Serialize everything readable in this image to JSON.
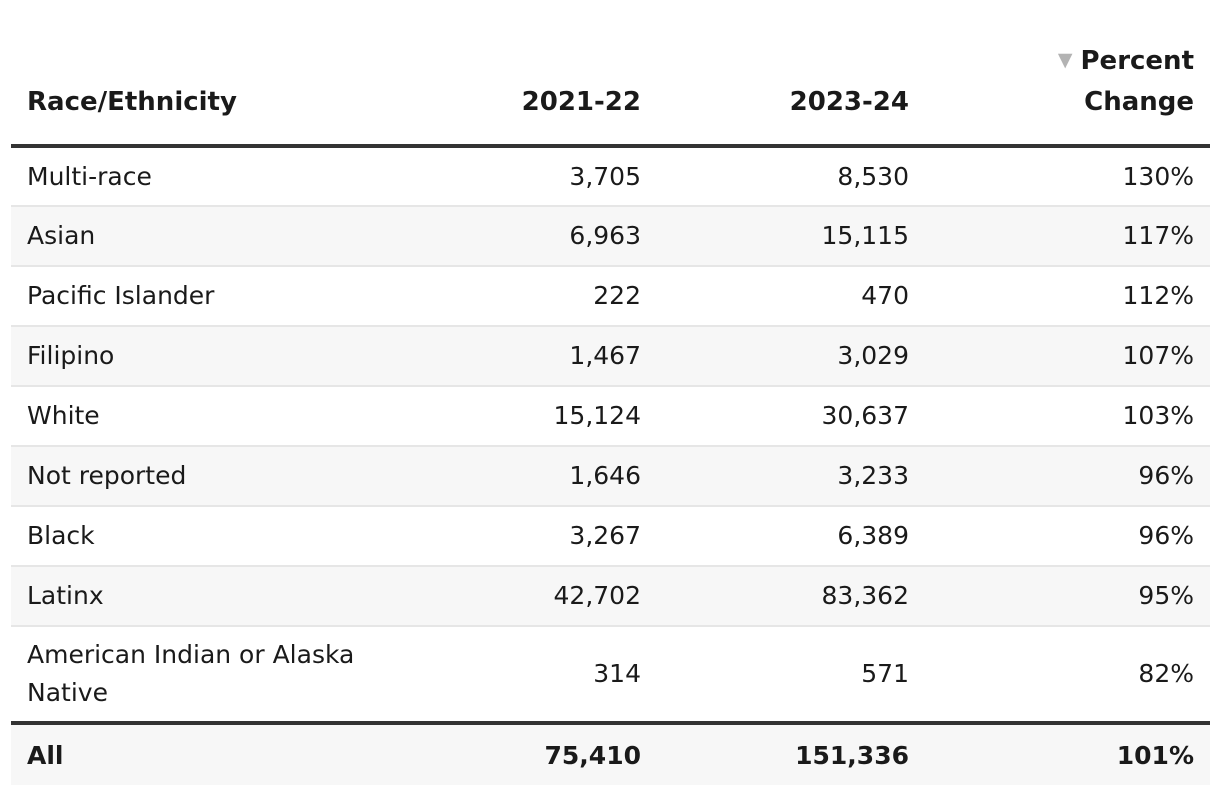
{
  "table": {
    "headers": {
      "race": "Race/Ethnicity",
      "y2021": "2021-22",
      "y2023": "2023-24",
      "change_line1": "Percent",
      "change_line2": "Change",
      "sort_icon": "sort-descending-icon",
      "sort_glyph": "▼"
    },
    "rows": [
      {
        "race": "Multi-race",
        "y2021": "3,705",
        "y2023": "8,530",
        "change": "130%"
      },
      {
        "race": "Asian",
        "y2021": "6,963",
        "y2023": "15,115",
        "change": "117%"
      },
      {
        "race": "Pacific Islander",
        "y2021": "222",
        "y2023": "470",
        "change": "112%"
      },
      {
        "race": "Filipino",
        "y2021": "1,467",
        "y2023": "3,029",
        "change": "107%"
      },
      {
        "race": "White",
        "y2021": "15,124",
        "y2023": "30,637",
        "change": "103%"
      },
      {
        "race": "Not reported",
        "y2021": "1,646",
        "y2023": "3,233",
        "change": "96%"
      },
      {
        "race": "Black",
        "y2021": "3,267",
        "y2023": "6,389",
        "change": "96%"
      },
      {
        "race": "Latinx",
        "y2021": "42,702",
        "y2023": "83,362",
        "change": "95%"
      },
      {
        "race": "American Indian or Alaska Native",
        "y2021": "314",
        "y2023": "571",
        "change": "82%"
      }
    ],
    "total": {
      "race": "All",
      "y2021": "75,410",
      "y2023": "151,336",
      "change": "101%"
    }
  },
  "chart_data": {
    "type": "table",
    "columns": [
      "Race/Ethnicity",
      "2021-22",
      "2023-24",
      "Percent Change"
    ],
    "sorted_by": "Percent Change",
    "sort_direction": "descending",
    "rows": [
      [
        "Multi-race",
        3705,
        8530,
        130
      ],
      [
        "Asian",
        6963,
        15115,
        117
      ],
      [
        "Pacific Islander",
        222,
        470,
        112
      ],
      [
        "Filipino",
        1467,
        3029,
        107
      ],
      [
        "White",
        15124,
        30637,
        103
      ],
      [
        "Not reported",
        1646,
        3233,
        96
      ],
      [
        "Black",
        3267,
        6389,
        96
      ],
      [
        "Latinx",
        42702,
        83362,
        95
      ],
      [
        "American Indian or Alaska Native",
        314,
        571,
        82
      ]
    ],
    "total_row": [
      "All",
      75410,
      151336,
      101
    ]
  },
  "colors": {
    "text": "#1a1a1a",
    "header_rule": "#333333",
    "row_divider": "#e6e6e6",
    "row_stripe": "#f7f7f7",
    "sort_icon": "#b3b3b3"
  }
}
